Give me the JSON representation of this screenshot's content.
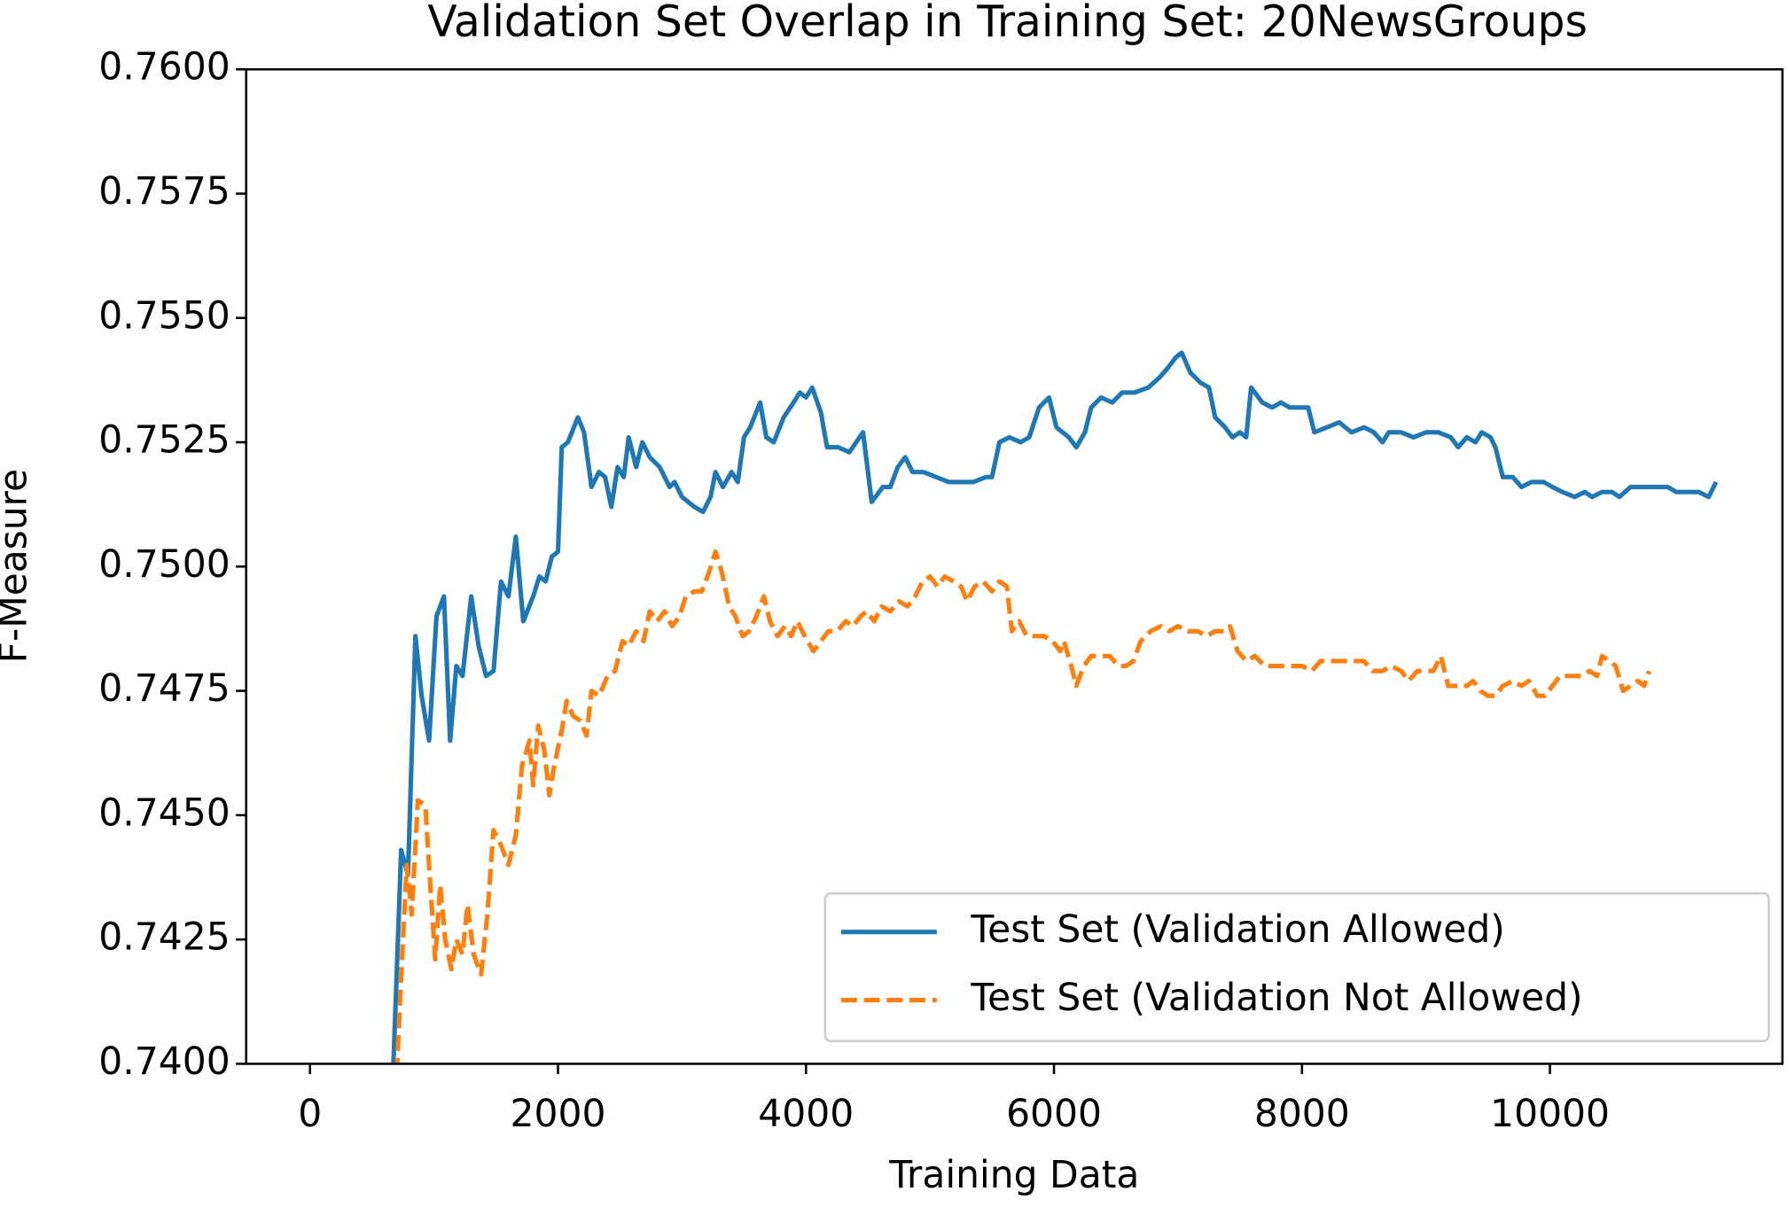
{
  "chart_data": {
    "type": "line",
    "title": "Validation Set Overlap in Training Set: 20NewsGroups",
    "x_label": "Training Data",
    "y_label": "F-Measure",
    "xlim": [
      -515,
      11875
    ],
    "ylim": [
      0.74,
      0.76
    ],
    "xticks": [
      0,
      2000,
      4000,
      6000,
      8000,
      10000
    ],
    "yticks": [
      {
        "value": 0.74,
        "label": "0.7400"
      },
      {
        "value": 0.7425,
        "label": "0.7425"
      },
      {
        "value": 0.745,
        "label": "0.7450"
      },
      {
        "value": 0.7475,
        "label": "0.7475"
      },
      {
        "value": 0.75,
        "label": "0.7500"
      },
      {
        "value": 0.7525,
        "label": "0.7525"
      },
      {
        "value": 0.755,
        "label": "0.7550"
      },
      {
        "value": 0.7575,
        "label": "0.7575"
      },
      {
        "value": 0.76,
        "label": "0.7600"
      }
    ],
    "legend": "lower right",
    "series": [
      {
        "name": "Test Set (Validation Allowed)",
        "color": "#1f77b4",
        "style": "solid",
        "x": [
          670,
          735,
          790,
          850,
          900,
          960,
          1020,
          1080,
          1130,
          1180,
          1230,
          1300,
          1360,
          1420,
          1480,
          1540,
          1600,
          1660,
          1720,
          1800,
          1850,
          1900,
          1950,
          2000,
          2030,
          2080,
          2160,
          2210,
          2270,
          2330,
          2380,
          2430,
          2480,
          2530,
          2570,
          2630,
          2680,
          2740,
          2820,
          2900,
          2940,
          3000,
          3100,
          3170,
          3230,
          3270,
          3330,
          3400,
          3450,
          3500,
          3550,
          3630,
          3680,
          3740,
          3820,
          3900,
          3950,
          4000,
          4050,
          4120,
          4170,
          4260,
          4350,
          4460,
          4530,
          4620,
          4680,
          4740,
          4800,
          4860,
          4950,
          5050,
          5150,
          5250,
          5350,
          5450,
          5500,
          5560,
          5640,
          5730,
          5800,
          5880,
          5960,
          6020,
          6120,
          6180,
          6250,
          6300,
          6380,
          6470,
          6550,
          6650,
          6760,
          6850,
          6920,
          6980,
          7030,
          7100,
          7180,
          7250,
          7300,
          7380,
          7440,
          7500,
          7550,
          7590,
          7680,
          7760,
          7830,
          7900,
          7980,
          8050,
          8100,
          8200,
          8300,
          8400,
          8500,
          8580,
          8650,
          8700,
          8800,
          8900,
          9000,
          9100,
          9200,
          9260,
          9330,
          9400,
          9450,
          9520,
          9560,
          9620,
          9700,
          9770,
          9850,
          9950,
          10020,
          10100,
          10200,
          10280,
          10340,
          10420,
          10500,
          10560,
          10650,
          10750,
          10850,
          10950,
          11020,
          11100,
          11200,
          11280,
          11340
        ],
        "values": [
          0.7398,
          0.7443,
          0.7438,
          0.7486,
          0.7474,
          0.7465,
          0.749,
          0.7494,
          0.7465,
          0.748,
          0.7478,
          0.7494,
          0.7484,
          0.7478,
          0.7479,
          0.7497,
          0.7494,
          0.7506,
          0.7489,
          0.7494,
          0.7498,
          0.7497,
          0.7502,
          0.7503,
          0.7524,
          0.7525,
          0.753,
          0.7527,
          0.7516,
          0.7519,
          0.7518,
          0.7512,
          0.752,
          0.7518,
          0.7526,
          0.752,
          0.7525,
          0.7522,
          0.752,
          0.7516,
          0.7517,
          0.7514,
          0.7512,
          0.7511,
          0.7514,
          0.7519,
          0.7516,
          0.7519,
          0.7517,
          0.7526,
          0.7528,
          0.7533,
          0.7526,
          0.7525,
          0.753,
          0.7533,
          0.7535,
          0.7534,
          0.7536,
          0.7531,
          0.7524,
          0.7524,
          0.7523,
          0.7527,
          0.7513,
          0.7516,
          0.7516,
          0.752,
          0.7522,
          0.7519,
          0.7519,
          0.7518,
          0.7517,
          0.7517,
          0.7517,
          0.7518,
          0.7518,
          0.7525,
          0.7526,
          0.7525,
          0.7526,
          0.7532,
          0.7534,
          0.7528,
          0.7526,
          0.7524,
          0.7527,
          0.7532,
          0.7534,
          0.7533,
          0.7535,
          0.7535,
          0.7536,
          0.7538,
          0.754,
          0.7542,
          0.7543,
          0.7539,
          0.7537,
          0.7536,
          0.753,
          0.7528,
          0.7526,
          0.7527,
          0.7526,
          0.7536,
          0.7533,
          0.7532,
          0.7533,
          0.7532,
          0.7532,
          0.7532,
          0.7527,
          0.7528,
          0.7529,
          0.7527,
          0.7528,
          0.7527,
          0.7525,
          0.7527,
          0.7527,
          0.7526,
          0.7527,
          0.7527,
          0.7526,
          0.7524,
          0.7526,
          0.7525,
          0.7527,
          0.7526,
          0.7524,
          0.7518,
          0.7518,
          0.7516,
          0.7517,
          0.7517,
          0.7516,
          0.7515,
          0.7514,
          0.7515,
          0.7514,
          0.7515,
          0.7515,
          0.7514,
          0.7516,
          0.7516,
          0.7516,
          0.7516,
          0.7515,
          0.7515,
          0.7515,
          0.7514,
          0.7517
        ]
      },
      {
        "name": "Test Set (Validation Not Allowed)",
        "color": "#ff7f0e",
        "style": "dashed",
        "x": [
          700,
          740,
          780,
          820,
          870,
          930,
          970,
          1010,
          1050,
          1090,
          1140,
          1180,
          1230,
          1270,
          1320,
          1380,
          1430,
          1480,
          1540,
          1600,
          1660,
          1710,
          1770,
          1800,
          1840,
          1890,
          1930,
          1970,
          2030,
          2070,
          2120,
          2180,
          2230,
          2270,
          2330,
          2400,
          2460,
          2520,
          2570,
          2630,
          2690,
          2740,
          2800,
          2860,
          2920,
          2980,
          3030,
          3100,
          3160,
          3220,
          3270,
          3320,
          3380,
          3430,
          3490,
          3540,
          3600,
          3660,
          3710,
          3770,
          3830,
          3880,
          3930,
          3990,
          4060,
          4120,
          4180,
          4250,
          4320,
          4380,
          4440,
          4490,
          4550,
          4610,
          4680,
          4750,
          4820,
          4880,
          4940,
          5000,
          5060,
          5120,
          5190,
          5250,
          5300,
          5360,
          5430,
          5500,
          5560,
          5620,
          5660,
          5720,
          5780,
          5850,
          5920,
          5990,
          6050,
          6080,
          6140,
          6180,
          6240,
          6300,
          6380,
          6450,
          6520,
          6580,
          6640,
          6700,
          6780,
          6860,
          6930,
          7000,
          7080,
          7160,
          7230,
          7300,
          7380,
          7420,
          7480,
          7550,
          7620,
          7700,
          7800,
          7900,
          8000,
          8080,
          8150,
          8250,
          8350,
          8430,
          8500,
          8570,
          8650,
          8720,
          8800,
          8860,
          8930,
          9000,
          9060,
          9120,
          9180,
          9260,
          9330,
          9380,
          9440,
          9500,
          9560,
          9620,
          9700,
          9770,
          9830,
          9900,
          9960,
          10020,
          10080,
          10150,
          10250,
          10320,
          10380,
          10420,
          10480,
          10530,
          10590,
          10650,
          10710,
          10760,
          10800
        ],
        "values": [
          0.7398,
          0.742,
          0.744,
          0.743,
          0.7453,
          0.7452,
          0.7436,
          0.7421,
          0.7436,
          0.7425,
          0.7419,
          0.7425,
          0.7422,
          0.7432,
          0.7422,
          0.7418,
          0.743,
          0.7447,
          0.7444,
          0.744,
          0.7446,
          0.746,
          0.7465,
          0.7456,
          0.7468,
          0.7463,
          0.7454,
          0.746,
          0.7467,
          0.7473,
          0.747,
          0.7469,
          0.7466,
          0.7475,
          0.7474,
          0.7478,
          0.7479,
          0.7485,
          0.7484,
          0.7487,
          0.7485,
          0.7491,
          0.7489,
          0.7491,
          0.7488,
          0.749,
          0.7494,
          0.7495,
          0.7495,
          0.7499,
          0.7503,
          0.7499,
          0.7492,
          0.749,
          0.7486,
          0.7487,
          0.749,
          0.7494,
          0.7489,
          0.7486,
          0.7488,
          0.7486,
          0.7489,
          0.7486,
          0.7483,
          0.7485,
          0.7487,
          0.7487,
          0.7489,
          0.7488,
          0.749,
          0.7491,
          0.7489,
          0.7492,
          0.7491,
          0.7493,
          0.7492,
          0.7494,
          0.7497,
          0.7498,
          0.7496,
          0.7498,
          0.7497,
          0.7496,
          0.7493,
          0.7496,
          0.7497,
          0.7495,
          0.7497,
          0.7496,
          0.7487,
          0.7489,
          0.7486,
          0.7486,
          0.7486,
          0.7485,
          0.7483,
          0.7485,
          0.748,
          0.7476,
          0.748,
          0.7482,
          0.7482,
          0.7482,
          0.748,
          0.748,
          0.7481,
          0.7485,
          0.7487,
          0.7488,
          0.7487,
          0.7488,
          0.7487,
          0.7487,
          0.7486,
          0.7487,
          0.7487,
          0.7488,
          0.7483,
          0.7481,
          0.7482,
          0.748,
          0.748,
          0.748,
          0.748,
          0.7479,
          0.7481,
          0.7481,
          0.7481,
          0.7481,
          0.7481,
          0.7479,
          0.7479,
          0.748,
          0.7479,
          0.7477,
          0.7479,
          0.7479,
          0.7479,
          0.7482,
          0.7476,
          0.7476,
          0.7476,
          0.7477,
          0.7475,
          0.7474,
          0.7474,
          0.7476,
          0.7477,
          0.7476,
          0.7477,
          0.7474,
          0.7474,
          0.7476,
          0.7478,
          0.7478,
          0.7478,
          0.7479,
          0.7478,
          0.7482,
          0.7481,
          0.748,
          0.7475,
          0.7476,
          0.7477,
          0.7476,
          0.7479
        ]
      }
    ]
  }
}
